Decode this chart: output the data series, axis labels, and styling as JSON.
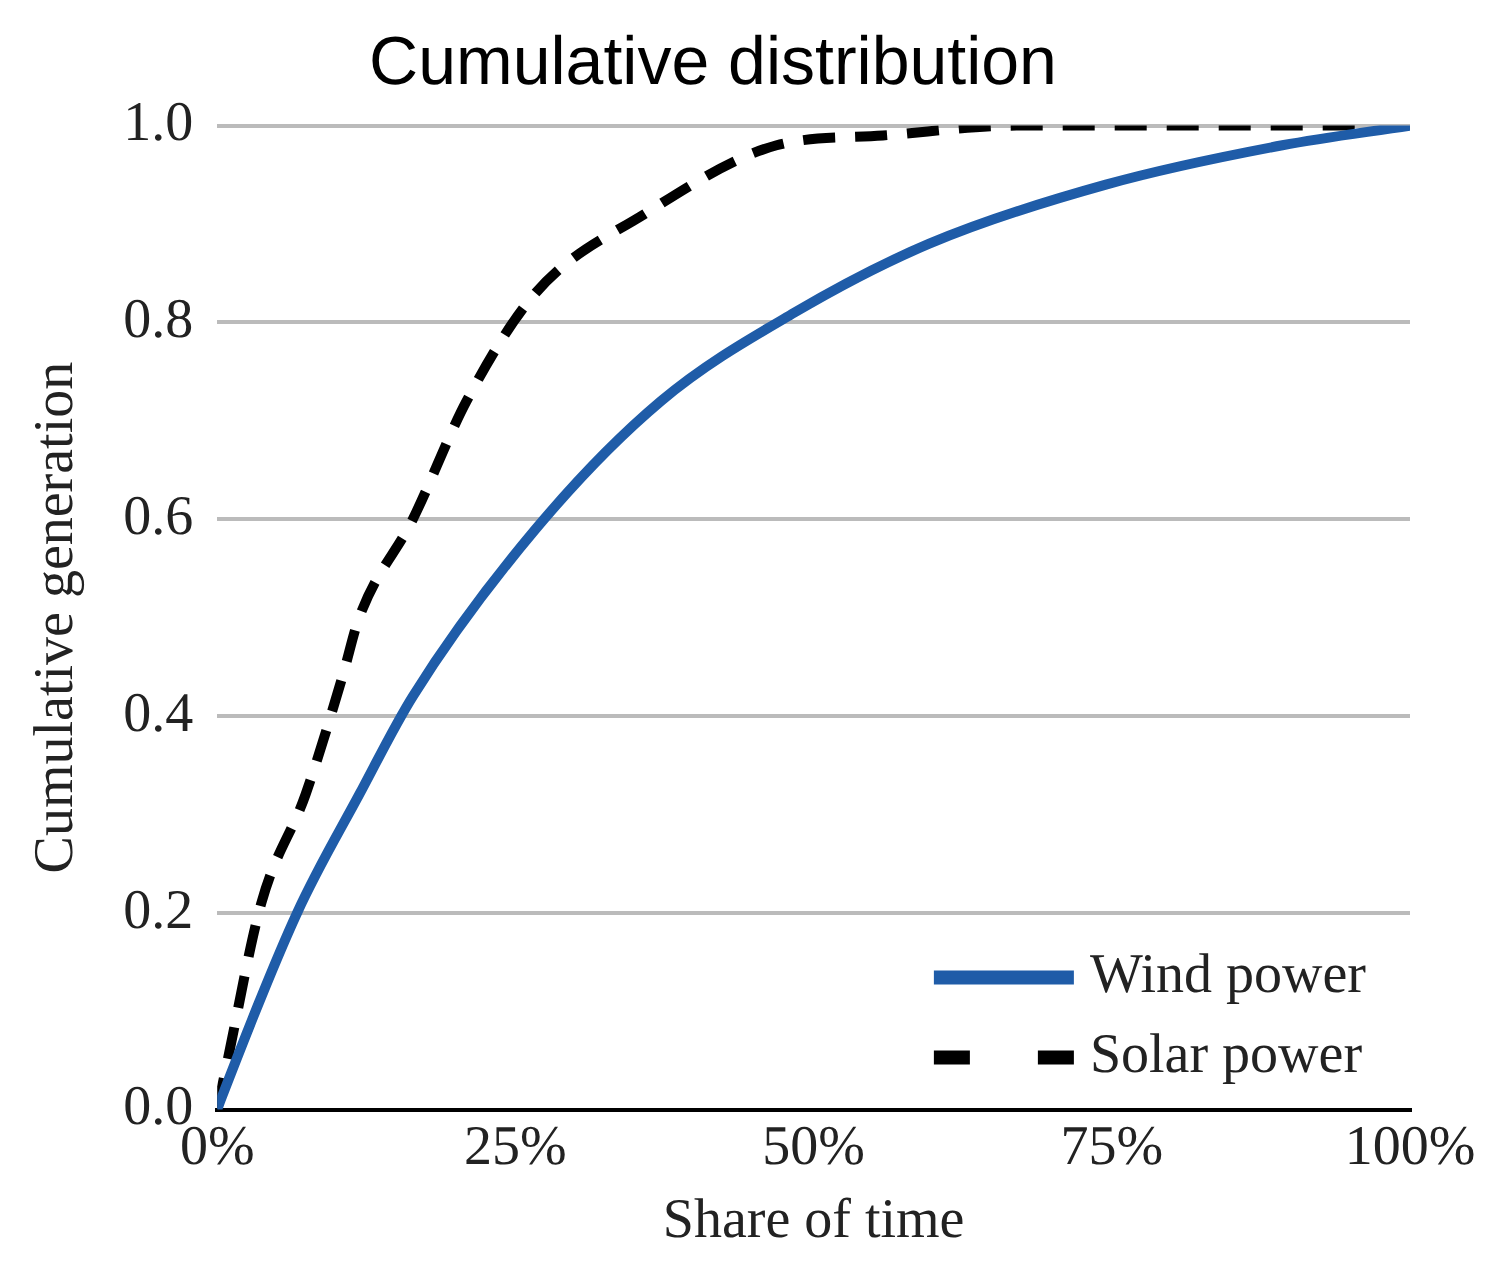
{
  "chart_data": {
    "type": "line",
    "title": "Cumulative distribution",
    "xlabel": "Share of time",
    "ylabel": "Cumulative generation",
    "xlim": [
      0,
      100
    ],
    "xticks": [
      {
        "value": 0,
        "label": "0%"
      },
      {
        "value": 25,
        "label": "25%"
      },
      {
        "value": 50,
        "label": "50%"
      },
      {
        "value": 75,
        "label": "75%"
      },
      {
        "value": 100,
        "label": "100%"
      }
    ],
    "ylim": [
      0,
      1
    ],
    "yticks": [
      {
        "value": 0,
        "label": "0.0"
      },
      {
        "value": 0.2,
        "label": "0.2"
      },
      {
        "value": 0.4,
        "label": "0.4"
      },
      {
        "value": 0.6,
        "label": "0.6"
      },
      {
        "value": 0.8,
        "label": "0.8"
      },
      {
        "value": 1,
        "label": "1.0"
      }
    ],
    "grid": "y",
    "legend": "bottom right",
    "marker": "none",
    "series": [
      {
        "name": "Wind power",
        "color": "#1f5ca8",
        "line_style": "solid",
        "x": [
          0,
          0.3,
          6.7,
          11.9,
          16.4,
          26.7,
          37.2,
          48.4,
          59.7,
          74.5,
          89.3,
          100
        ],
        "values": [
          0,
          0.01,
          0.2,
          0.32,
          0.42,
          0.59,
          0.72,
          0.81,
          0.88,
          0.94,
          0.98,
          1
        ]
      },
      {
        "name": "Solar power",
        "color": "#000000",
        "line_style": "dashed",
        "x": [
          0,
          0.7,
          3.7,
          7.4,
          10.5,
          11.9,
          16.4,
          20.9,
          26.7,
          35.8,
          46.9,
          55.8,
          67,
          96
        ],
        "values": [
          0,
          0.04,
          0.21,
          0.32,
          0.44,
          0.5,
          0.6,
          0.72,
          0.83,
          0.91,
          0.98,
          0.99,
          1,
          1
        ]
      }
    ]
  }
}
